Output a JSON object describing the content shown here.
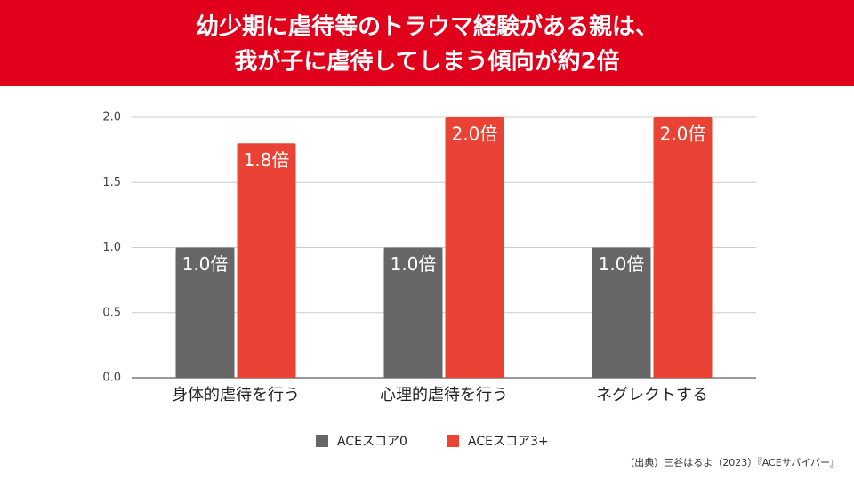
{
  "chart_data": {
    "type": "bar",
    "title": [
      "幼少期に虐待等のトラウマ経験がある親は、",
      "我が子に虐待してしまう傾向が約2倍"
    ],
    "categories": [
      "身体的虐待を行う",
      "心理的虐待を行う",
      "ネグレクトする"
    ],
    "series": [
      {
        "name": "ACEスコア0",
        "color": "#666666",
        "values": [
          1.0,
          1.0,
          1.0
        ],
        "value_labels": [
          "1.0倍",
          "1.0倍",
          "1.0倍"
        ]
      },
      {
        "name": "ACEスコア3+",
        "color": "#ea4335",
        "values": [
          1.8,
          2.0,
          2.0
        ],
        "value_labels": [
          "1.8倍",
          "2.0倍",
          "2.0倍"
        ]
      }
    ],
    "ylim": [
      0,
      2
    ],
    "yticks": [
      {
        "value": 0,
        "label": "0.0"
      },
      0.5,
      {
        "value": 1,
        "label": "1.0"
      },
      1.5,
      {
        "value": 2,
        "label": "2.0"
      }
    ],
    "grid": true,
    "source": "（出典）三谷はるよ（2023）『ACEサバイバー』"
  }
}
